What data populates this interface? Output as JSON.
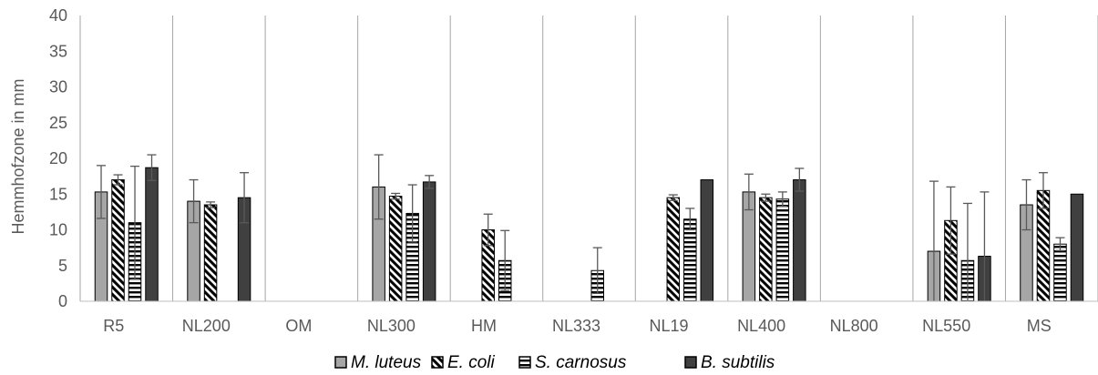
{
  "chart_data": {
    "type": "bar",
    "ylabel": "Hemmhofzone in mm",
    "xlabel": "",
    "ylim": [
      0,
      40
    ],
    "yticks": [
      0,
      5,
      10,
      15,
      20,
      25,
      30,
      35,
      40
    ],
    "grid": false,
    "legend_position": "bottom",
    "categories": [
      "R5",
      "NL200",
      "OM",
      "NL300",
      "HM",
      "NL333",
      "NL19",
      "NL400",
      "NL800",
      "NL550",
      "MS"
    ],
    "series": [
      {
        "name": "M. luteus",
        "pattern": "solid-light",
        "color": "#a6a6a6",
        "values": [
          15.3,
          14.0,
          0,
          16.0,
          0,
          0,
          0,
          15.3,
          0,
          7.0,
          13.5
        ],
        "errors": [
          3.7,
          3.0,
          0,
          4.5,
          0,
          0,
          0,
          2.5,
          0,
          9.8,
          3.5
        ]
      },
      {
        "name": "E. coli",
        "pattern": "diagonal",
        "color": "#000000",
        "values": [
          17.0,
          13.5,
          0,
          14.7,
          10.0,
          0,
          14.5,
          14.5,
          0,
          11.3,
          15.5
        ],
        "errors": [
          0.7,
          0.4,
          0,
          0.4,
          2.2,
          0,
          0.4,
          0.5,
          0,
          4.7,
          2.5
        ]
      },
      {
        "name": "S. carnosus",
        "pattern": "horizontal",
        "color": "#000000",
        "values": [
          11.0,
          0,
          0,
          12.3,
          5.7,
          4.3,
          11.5,
          14.3,
          0,
          5.7,
          8.0
        ],
        "errors": [
          7.9,
          0,
          0,
          4.0,
          4.2,
          3.2,
          1.5,
          1.0,
          0,
          8.0,
          0.9
        ]
      },
      {
        "name": "B. subtilis",
        "pattern": "solid-dark",
        "color": "#404040",
        "values": [
          18.7,
          14.5,
          0,
          16.7,
          0,
          0,
          17.0,
          17.0,
          0,
          6.3,
          15.0
        ],
        "errors": [
          1.8,
          3.5,
          0,
          0.9,
          0,
          0,
          0,
          1.6,
          0,
          9.0,
          0
        ]
      }
    ]
  }
}
